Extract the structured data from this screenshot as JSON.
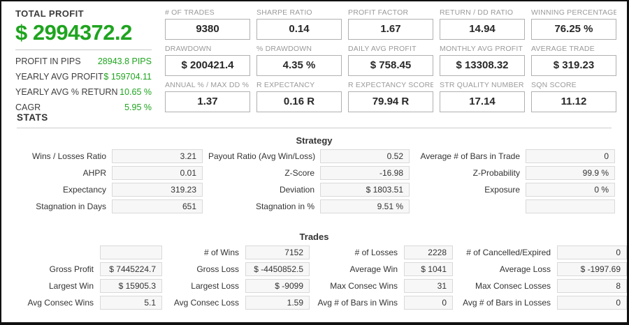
{
  "colors": {
    "accent_green": "#1fa41f",
    "label_gray": "#9a9a9a",
    "value_dark": "#282828",
    "stat_box_bg": "#f7f7f7"
  },
  "summary": {
    "title": "TOTAL PROFIT",
    "total_profit": "$ 2994372.2",
    "rows": [
      {
        "label": "PROFIT IN PIPS",
        "value": "28943.8 PIPS"
      },
      {
        "label": "YEARLY AVG PROFIT",
        "value": "$ 159704.11"
      },
      {
        "label": "YEARLY AVG % RETURN",
        "value": "10.65 %"
      },
      {
        "label": "CAGR",
        "value": "5.95 %"
      }
    ]
  },
  "metrics": {
    "cells": [
      {
        "label": "# OF TRADES",
        "value": "9380"
      },
      {
        "label": "SHARPE RATIO",
        "value": "0.14"
      },
      {
        "label": "PROFIT FACTOR",
        "value": "1.67"
      },
      {
        "label": "RETURN / DD RATIO",
        "value": "14.94"
      },
      {
        "label": "WINNING PERCENTAGE",
        "value": "76.25 %"
      },
      {
        "label": "DRAWDOWN",
        "value": "$ 200421.4"
      },
      {
        "label": "% DRAWDOWN",
        "value": "4.35 %"
      },
      {
        "label": "DAILY AVG PROFIT",
        "value": "$ 758.45"
      },
      {
        "label": "MONTHLY AVG PROFIT",
        "value": "$ 13308.32"
      },
      {
        "label": "AVERAGE TRADE",
        "value": "$ 319.23"
      },
      {
        "label": "ANNUAL % / MAX DD %",
        "value": "1.37"
      },
      {
        "label": "R EXPECTANCY",
        "value": "0.16 R"
      },
      {
        "label": "R EXPECTANCY SCORE",
        "value": "79.94 R"
      },
      {
        "label": "STR QUALITY NUMBER",
        "value": "17.14"
      },
      {
        "label": "SQN SCORE",
        "value": "11.12"
      }
    ]
  },
  "stats": {
    "title": "STATS",
    "strategy": {
      "title": "Strategy",
      "rows": [
        {
          "cells": [
            {
              "label": "Wins / Losses Ratio",
              "value": "3.21"
            },
            {
              "label": "Payout Ratio (Avg Win/Loss)",
              "value": "0.52"
            },
            {
              "label": "Average # of Bars in Trade",
              "value": "0"
            }
          ]
        },
        {
          "cells": [
            {
              "label": "AHPR",
              "value": "0.01"
            },
            {
              "label": "Z-Score",
              "value": "-16.98"
            },
            {
              "label": "Z-Probability",
              "value": "99.9 %"
            }
          ]
        },
        {
          "cells": [
            {
              "label": "Expectancy",
              "value": "319.23"
            },
            {
              "label": "Deviation",
              "value": "$ 1803.51"
            },
            {
              "label": "Exposure",
              "value": "0 %"
            }
          ]
        },
        {
          "cells": [
            {
              "label": "Stagnation in Days",
              "value": "651"
            },
            {
              "label": "Stagnation in %",
              "value": "9.51 %"
            },
            {
              "label": "",
              "value": ""
            }
          ]
        }
      ]
    },
    "trades": {
      "title": "Trades",
      "rows": [
        {
          "cells": [
            {
              "label": "",
              "value": ""
            },
            {
              "label": "# of Wins",
              "value": "7152"
            },
            {
              "label": "# of Losses",
              "value": "2228"
            },
            {
              "label": "# of Cancelled/Expired",
              "value": "0"
            }
          ]
        },
        {
          "cells": [
            {
              "label": "Gross Profit",
              "value": "$ 7445224.7"
            },
            {
              "label": "Gross Loss",
              "value": "$ -4450852.5"
            },
            {
              "label": "Average Win",
              "value": "$ 1041"
            },
            {
              "label": "Average Loss",
              "value": "$ -1997.69"
            }
          ]
        },
        {
          "cells": [
            {
              "label": "Largest Win",
              "value": "$ 15905.3"
            },
            {
              "label": "Largest Loss",
              "value": "$ -9099"
            },
            {
              "label": "Max Consec Wins",
              "value": "31"
            },
            {
              "label": "Max Consec Losses",
              "value": "8"
            }
          ]
        },
        {
          "cells": [
            {
              "label": "Avg Consec Wins",
              "value": "5.1"
            },
            {
              "label": "Avg Consec Loss",
              "value": "1.59"
            },
            {
              "label": "Avg # of Bars in Wins",
              "value": "0"
            },
            {
              "label": "Avg # of Bars in Losses",
              "value": "0"
            }
          ]
        }
      ]
    }
  }
}
